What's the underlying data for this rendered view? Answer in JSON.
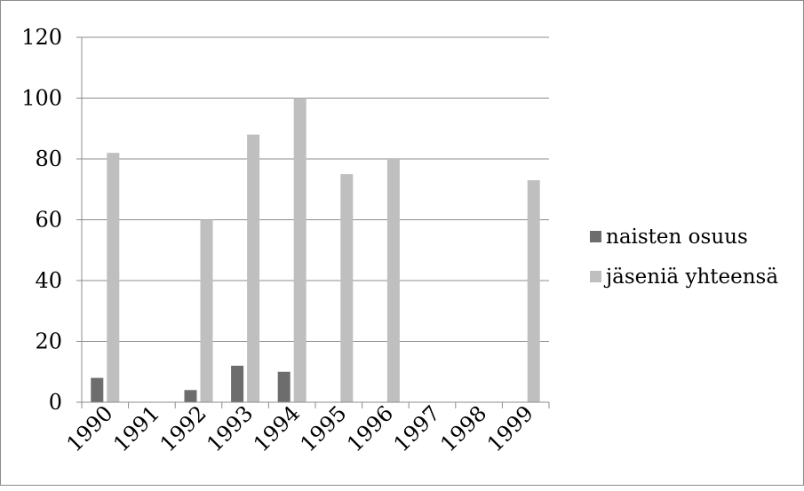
{
  "chart_data": {
    "type": "bar",
    "categories": [
      "1990",
      "1991",
      "1992",
      "1993",
      "1994",
      "1995",
      "1996",
      "1997",
      "1998",
      "1999"
    ],
    "series": [
      {
        "name": "naisten osuus",
        "values": [
          8,
          0,
          4,
          12,
          10,
          0,
          0,
          0,
          0,
          0
        ]
      },
      {
        "name": "jäseniä yhteensä",
        "values": [
          82,
          0,
          60,
          88,
          100,
          75,
          80,
          0,
          0,
          73
        ]
      }
    ],
    "ylim": [
      0,
      120
    ],
    "yticks": [
      "0",
      "20",
      "40",
      "60",
      "80",
      "100",
      "120"
    ],
    "grid": true,
    "legend": "right",
    "colors": {
      "naisten osuus": "#6d6d6d",
      "jäseniä yhteensä": "#bfbfbf",
      "grid": "#8c8c8c",
      "axis": "#8c8c8c"
    }
  }
}
